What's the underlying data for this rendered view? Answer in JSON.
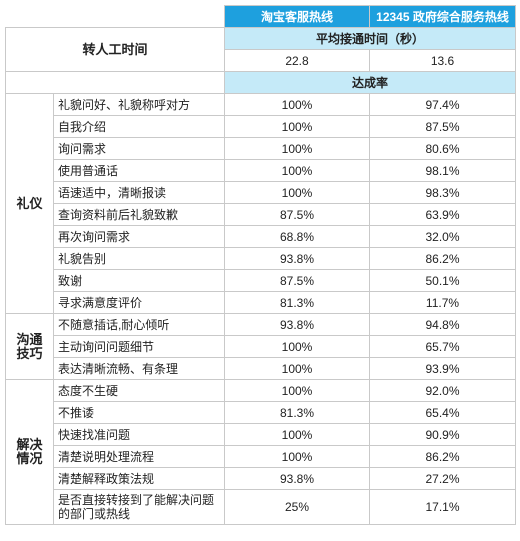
{
  "headers": {
    "taobao": "淘宝客服热线",
    "gov": "12345 政府综合服务热线"
  },
  "transfer": {
    "label": "转人工时间",
    "subheader": "平均接通时间（秒）",
    "taobao": "22.8",
    "gov": "13.6"
  },
  "rate_header": "达成率",
  "categories": [
    {
      "name": "礼仪",
      "items": [
        {
          "label": "礼貌问好、礼貌称呼对方",
          "taobao": "100%",
          "gov": "97.4%"
        },
        {
          "label": "自我介绍",
          "taobao": "100%",
          "gov": "87.5%"
        },
        {
          "label": "询问需求",
          "taobao": "100%",
          "gov": "80.6%"
        },
        {
          "label": "使用普通话",
          "taobao": "100%",
          "gov": "98.1%"
        },
        {
          "label": "语速适中，清晰报读",
          "taobao": "100%",
          "gov": "98.3%"
        },
        {
          "label": "查询资料前后礼貌致歉",
          "taobao": "87.5%",
          "gov": "63.9%"
        },
        {
          "label": "再次询问需求",
          "taobao": "68.8%",
          "gov": "32.0%"
        },
        {
          "label": "礼貌告别",
          "taobao": "93.8%",
          "gov": "86.2%"
        },
        {
          "label": "致谢",
          "taobao": "87.5%",
          "gov": "50.1%"
        },
        {
          "label": "寻求满意度评价",
          "taobao": "81.3%",
          "gov": "11.7%"
        }
      ]
    },
    {
      "name": "沟通技巧",
      "items": [
        {
          "label": "不随意插话,耐心倾听",
          "taobao": "93.8%",
          "gov": "94.8%"
        },
        {
          "label": "主动询问问题细节",
          "taobao": "100%",
          "gov": "65.7%"
        },
        {
          "label": "表达清晰流畅、有条理",
          "taobao": "100%",
          "gov": "93.9%"
        }
      ]
    },
    {
      "name": "解决情况",
      "items": [
        {
          "label": "态度不生硬",
          "taobao": "100%",
          "gov": "92.0%"
        },
        {
          "label": "不推诿",
          "taobao": "81.3%",
          "gov": "65.4%"
        },
        {
          "label": "快速找准问题",
          "taobao": "100%",
          "gov": "90.9%"
        },
        {
          "label": "清楚说明处理流程",
          "taobao": "100%",
          "gov": "86.2%"
        },
        {
          "label": "清楚解释政策法规",
          "taobao": "93.8%",
          "gov": "27.2%"
        },
        {
          "label": "是否直接转接到了能解决问题的部门或热线",
          "taobao": "25%",
          "gov": "17.1%"
        }
      ]
    }
  ]
}
